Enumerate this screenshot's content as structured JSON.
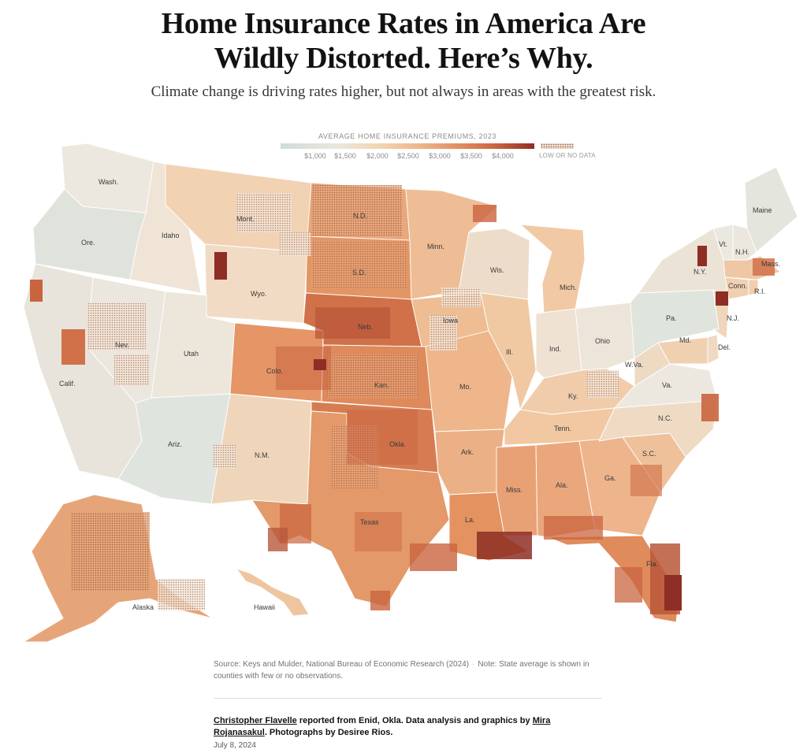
{
  "headline": {
    "line1": "Home Insurance Rates in America Are",
    "line2": "Wildly Distorted. Here’s Why."
  },
  "dek": "Climate change is driving rates higher, but not always in areas with the greatest risk.",
  "legend": {
    "title": "AVERAGE HOME INSURANCE PREMIUMS, 2023",
    "ticks": [
      "$1,000",
      "$1,500",
      "$2,000",
      "$2,500",
      "$3,000",
      "$3,500",
      "$4,000"
    ],
    "tick_values": [
      1000,
      1500,
      2000,
      2500,
      3000,
      3500,
      4000
    ],
    "no_data_label": "LOW OR NO DATA",
    "colors": {
      "low": "#cfdcd7",
      "mid_low": "#ebe7de",
      "mid": "#f2d4ae",
      "mid_high": "#e08f62",
      "high": "#c9643f",
      "max": "#8e2e25"
    }
  },
  "states": [
    {
      "abbr": "Wash.",
      "fill": "#ece7df"
    },
    {
      "abbr": "Ore.",
      "fill": "#dfe3dc"
    },
    {
      "abbr": "Calif.",
      "fill": "#e8e4dc"
    },
    {
      "abbr": "Idaho",
      "fill": "#efe4d6"
    },
    {
      "abbr": "Nev.",
      "fill": "#ebe7df"
    },
    {
      "abbr": "Mont.",
      "fill": "#f1d2b3"
    },
    {
      "abbr": "Wyo.",
      "fill": "#f1dbc4"
    },
    {
      "abbr": "Utah",
      "fill": "#ede6db"
    },
    {
      "abbr": "Ariz.",
      "fill": "#e0e4de"
    },
    {
      "abbr": "Colo.",
      "fill": "#e59566"
    },
    {
      "abbr": "N.M.",
      "fill": "#efd5b9"
    },
    {
      "abbr": "N.D.",
      "fill": "#e8a87c"
    },
    {
      "abbr": "S.D.",
      "fill": "#e39665"
    },
    {
      "abbr": "Neb.",
      "fill": "#d0714a"
    },
    {
      "abbr": "Kan.",
      "fill": "#de8a5b"
    },
    {
      "abbr": "Okla.",
      "fill": "#d77c52"
    },
    {
      "abbr": "Texas",
      "fill": "#e39969"
    },
    {
      "abbr": "Minn.",
      "fill": "#eebd95"
    },
    {
      "abbr": "Iowa",
      "fill": "#eebd93"
    },
    {
      "abbr": "Mo.",
      "fill": "#efb68b"
    },
    {
      "abbr": "Ark.",
      "fill": "#ecb086"
    },
    {
      "abbr": "La.",
      "fill": "#e4925f"
    },
    {
      "abbr": "Wis.",
      "fill": "#eddcca"
    },
    {
      "abbr": "Ill.",
      "fill": "#f0c9a3"
    },
    {
      "abbr": "Mich.",
      "fill": "#f1c9a4"
    },
    {
      "abbr": "Ind.",
      "fill": "#efe2d3"
    },
    {
      "abbr": "Ohio",
      "fill": "#eee5da"
    },
    {
      "abbr": "Ky.",
      "fill": "#f1ccaa"
    },
    {
      "abbr": "Tenn.",
      "fill": "#f1c8a1"
    },
    {
      "abbr": "Miss.",
      "fill": "#e8a175"
    },
    {
      "abbr": "Ala.",
      "fill": "#eaa77c"
    },
    {
      "abbr": "Ga.",
      "fill": "#eeb48c"
    },
    {
      "abbr": "Fla.",
      "fill": "#e08b5c"
    },
    {
      "abbr": "S.C.",
      "fill": "#efc19a"
    },
    {
      "abbr": "N.C.",
      "fill": "#efdac4"
    },
    {
      "abbr": "Va.",
      "fill": "#ece8e0"
    },
    {
      "abbr": "W.Va.",
      "fill": "#eed9c3"
    },
    {
      "abbr": "Pa.",
      "fill": "#dfe4dd"
    },
    {
      "abbr": "N.Y.",
      "fill": "#ebe3d6"
    },
    {
      "abbr": "Maine",
      "fill": "#e4e5dd"
    },
    {
      "abbr": "Vt.",
      "fill": "#ebe8e0"
    },
    {
      "abbr": "N.H.",
      "fill": "#ece7de"
    },
    {
      "abbr": "Mass.",
      "fill": "#eec7a4"
    },
    {
      "abbr": "Conn.",
      "fill": "#efd0b1"
    },
    {
      "abbr": "R.I.",
      "fill": "#efcfae"
    },
    {
      "abbr": "N.J.",
      "fill": "#efd6bd"
    },
    {
      "abbr": "Md.",
      "fill": "#efd1b2"
    },
    {
      "abbr": "Del.",
      "fill": "#f0d9c2"
    },
    {
      "abbr": "Alaska",
      "fill": "#e6a579"
    },
    {
      "abbr": "Hawaii",
      "fill": "#efc59f"
    }
  ],
  "footer": {
    "source": "Source: Keys and Mulder, National Bureau of Economic Research (2024)",
    "separator": "·",
    "note": "Note: State average is shown in counties with few or no observations.",
    "byline_author": "Christopher Flavelle",
    "byline_mid": " reported from Enid, Okla. Data analysis and graphics by ",
    "byline_analyst": "Mira Rojanasakul",
    "byline_end": ". Photographs by Desiree Rios.",
    "date": "July 8, 2024"
  }
}
